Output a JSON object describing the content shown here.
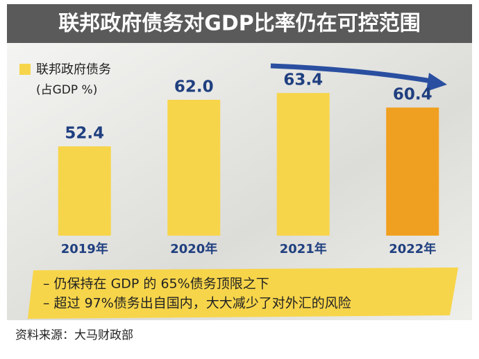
{
  "chart_data": {
    "type": "bar",
    "title": "联邦政府债务对GDP比率仍在可控范围",
    "series": [
      {
        "name": "联邦政府债务",
        "color": "#f7d54a"
      }
    ],
    "y_label": "(占GDP %)",
    "categories": [
      "2019年",
      "2020年",
      "2021年",
      "2022年"
    ],
    "values": [
      52.4,
      62,
      63.4,
      60.4
    ],
    "value_labels": [
      "52.4",
      "62.0",
      "63.4",
      "60.4"
    ],
    "colors": [
      "#f7d54a",
      "#f7d54a",
      "#f7d54a",
      "#f0a020"
    ],
    "ylim": [
      34,
      72
    ],
    "notes": [
      "– 仍保持在 GDP 的 65%债务顶限之下",
      "– 超过 97%债务出自国内，大大减少了对外汇的风险"
    ],
    "source": "资料来源：大马财政部"
  }
}
